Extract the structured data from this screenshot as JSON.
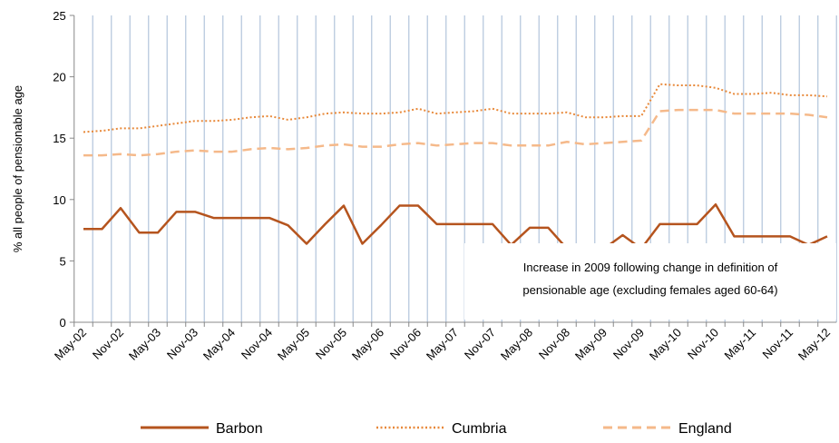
{
  "chart_data": {
    "type": "line",
    "ylabel": "% all people of pensionable age",
    "annotation": [
      "Increase in 2009 following change in definition of",
      "pensionable age (excluding females aged 60-64)"
    ],
    "categories": [
      "May-02",
      null,
      "Nov-02",
      null,
      "May-03",
      null,
      "Nov-03",
      null,
      "May-04",
      null,
      "Nov-04",
      null,
      "May-05",
      null,
      "Nov-05",
      null,
      "May-06",
      null,
      "Nov-06",
      null,
      "May-07",
      null,
      "Nov-07",
      null,
      "May-08",
      null,
      "Nov-08",
      null,
      "May-09",
      null,
      "Nov-09",
      null,
      "May-10",
      null,
      "Nov-10",
      null,
      "May-11",
      null,
      "Nov-11",
      null,
      "May-12"
    ],
    "series": [
      {
        "name": "Barbon",
        "color": "#b5541e",
        "style": "solid",
        "values": [
          7.6,
          7.6,
          9.3,
          7.3,
          7.3,
          9.0,
          9.0,
          8.5,
          8.5,
          8.5,
          8.5,
          7.9,
          6.4,
          8.0,
          9.5,
          6.4,
          7.9,
          9.5,
          9.5,
          8.0,
          8.0,
          8.0,
          8.0,
          6.3,
          7.7,
          7.7,
          6.0,
          6.0,
          6.0,
          7.1,
          6.0,
          8.0,
          8.0,
          8.0,
          9.6,
          7.0,
          7.0,
          7.0,
          7.0,
          6.3,
          7.0
        ]
      },
      {
        "name": "Cumbria",
        "color": "#e8893a",
        "style": "dotted",
        "values": [
          15.5,
          15.6,
          15.8,
          15.8,
          16.0,
          16.2,
          16.4,
          16.4,
          16.5,
          16.7,
          16.8,
          16.5,
          16.7,
          17.0,
          17.1,
          17.0,
          17.0,
          17.1,
          17.4,
          17.0,
          17.1,
          17.2,
          17.4,
          17.0,
          17.0,
          17.0,
          17.1,
          16.7,
          16.7,
          16.8,
          16.8,
          19.4,
          19.3,
          19.3,
          19.1,
          18.6,
          18.6,
          18.7,
          18.5,
          18.5,
          18.4
        ]
      },
      {
        "name": "England",
        "color": "#f5b98a",
        "style": "dashed",
        "values": [
          13.6,
          13.6,
          13.7,
          13.6,
          13.7,
          13.9,
          14.0,
          13.9,
          13.9,
          14.1,
          14.2,
          14.1,
          14.2,
          14.4,
          14.5,
          14.3,
          14.3,
          14.5,
          14.6,
          14.4,
          14.5,
          14.6,
          14.6,
          14.4,
          14.4,
          14.4,
          14.7,
          14.5,
          14.6,
          14.7,
          14.8,
          17.2,
          17.3,
          17.3,
          17.3,
          17.0,
          17.0,
          17.0,
          17.0,
          16.9,
          16.7
        ]
      }
    ],
    "ylim": [
      0,
      25
    ],
    "yticks": [
      0,
      5,
      10,
      15,
      20,
      25
    ],
    "grid": true,
    "legend": "bottom"
  }
}
